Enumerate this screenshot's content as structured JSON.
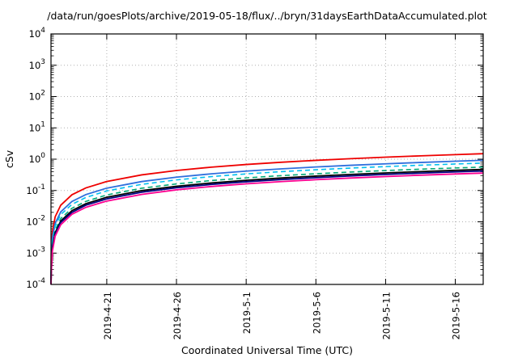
{
  "window": {
    "background": "#ffffff"
  },
  "chart_data": {
    "type": "line",
    "title": "/data/run/goesPlots/archive/2019-05-18/flux/../bryn/31daysEarthDataAccumulated.plot",
    "xlabel": "Coordinated Universal Time (UTC)",
    "ylabel": "cSv",
    "grid": true,
    "legend": "none",
    "x_axis": {
      "kind": "time",
      "range_days": [
        0,
        31
      ],
      "start_date": "2019-4-17",
      "end_date": "2019-5-18",
      "tick_days": [
        4,
        9,
        14,
        19,
        24,
        29
      ],
      "tick_labels": [
        "2019-4-21",
        "2019-4-26",
        "2019-5-1",
        "2019-5-6",
        "2019-5-11",
        "2019-5-16"
      ]
    },
    "y_axis": {
      "scale": "log10",
      "min": 0.0001,
      "max": 10000.0,
      "tick_exponents": [
        -4,
        -3,
        -2,
        -1,
        0,
        1,
        2,
        3,
        4
      ]
    },
    "grid_color": "#b0b0b0",
    "x_days": [
      0.002,
      0.02,
      0.1,
      0.3,
      0.7,
      1.5,
      2.5,
      4,
      6.5,
      9,
      11.5,
      14,
      16.5,
      19,
      21.5,
      24,
      26.5,
      29,
      31
    ],
    "series": [
      {
        "name": "red",
        "color": "#ee0000",
        "dash": "",
        "width": 1.8,
        "values": [
          9.7e-05,
          0.00097,
          0.0048,
          0.0145,
          0.034,
          0.073,
          0.121,
          0.194,
          0.315,
          0.435,
          0.556,
          0.677,
          0.798,
          0.919,
          1.04,
          1.16,
          1.28,
          1.4,
          1.5
        ]
      },
      {
        "name": "blue",
        "color": "#2f6fdd",
        "dash": "",
        "width": 1.8,
        "values": [
          5.9e-05,
          0.00059,
          0.003,
          0.0089,
          0.0208,
          0.0445,
          0.074,
          0.119,
          0.193,
          0.267,
          0.341,
          0.416,
          0.49,
          0.564,
          0.638,
          0.712,
          0.786,
          0.861,
          0.92
        ]
      },
      {
        "name": "cyan",
        "color": "#00bfee",
        "dash": "6,4",
        "width": 1.6,
        "values": [
          4.8e-05,
          0.00048,
          0.0024,
          0.0073,
          0.017,
          0.036,
          0.06,
          0.097,
          0.157,
          0.218,
          0.278,
          0.339,
          0.399,
          0.46,
          0.52,
          0.581,
          0.641,
          0.702,
          0.75
        ]
      },
      {
        "name": "green",
        "color": "#00a877",
        "dash": "6,4",
        "width": 1.6,
        "values": [
          3.6e-05,
          0.00036,
          0.0018,
          0.0054,
          0.0127,
          0.027,
          0.045,
          0.072,
          0.118,
          0.162,
          0.208,
          0.253,
          0.298,
          0.343,
          0.389,
          0.434,
          0.479,
          0.524,
          0.56
        ]
      },
      {
        "name": "black",
        "color": "#000000",
        "dash": "",
        "width": 1.8,
        "values": [
          3e-05,
          0.0003,
          0.0015,
          0.0045,
          0.0106,
          0.0227,
          0.038,
          0.061,
          0.099,
          0.136,
          0.174,
          0.212,
          0.25,
          0.288,
          0.326,
          0.364,
          0.402,
          0.44,
          0.47
        ]
      },
      {
        "name": "navy",
        "color": "#000080",
        "dash": "",
        "width": 1.8,
        "values": [
          2.7e-05,
          0.00027,
          0.00135,
          0.0041,
          0.0095,
          0.02,
          0.034,
          0.054,
          0.088,
          0.122,
          0.156,
          0.19,
          0.223,
          0.257,
          0.291,
          0.325,
          0.359,
          0.393,
          0.42
        ]
      },
      {
        "name": "magenta",
        "color": "#ff0090",
        "dash": "",
        "width": 1.8,
        "values": [
          2.3e-05,
          0.00023,
          0.00116,
          0.0035,
          0.0081,
          0.0174,
          0.029,
          0.046,
          0.075,
          0.105,
          0.134,
          0.163,
          0.192,
          0.221,
          0.25,
          0.279,
          0.308,
          0.337,
          0.36
        ]
      }
    ]
  }
}
